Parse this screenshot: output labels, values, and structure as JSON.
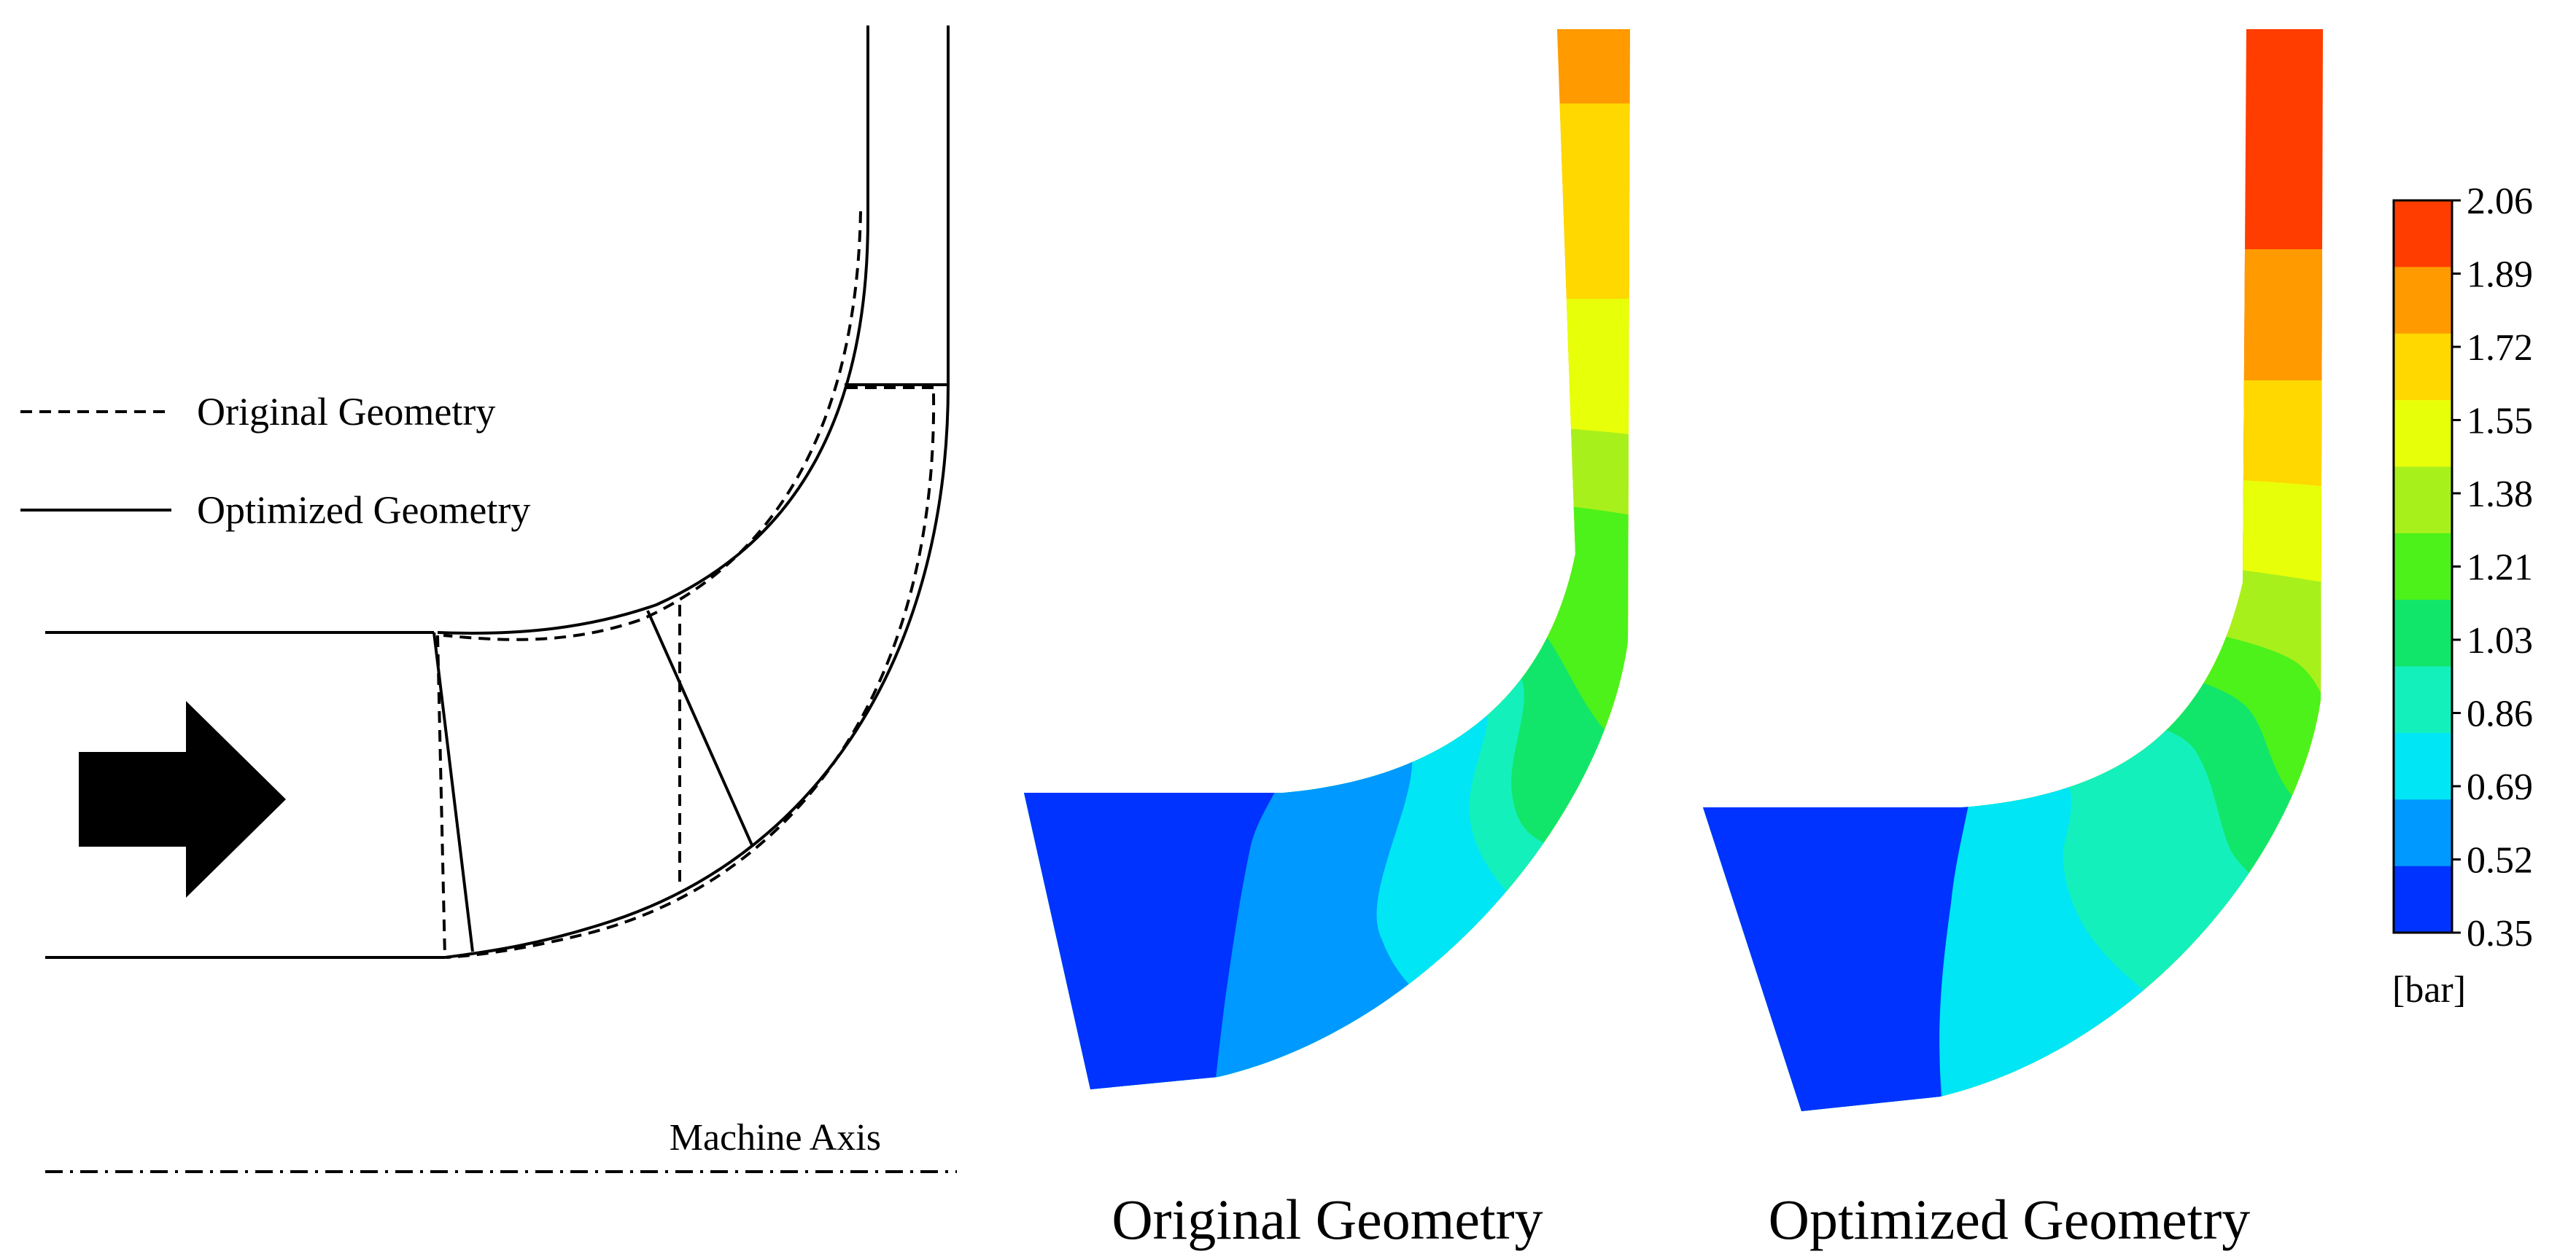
{
  "legend": {
    "original_label": "Original Geometry",
    "optimized_label": "Optimized Geometry"
  },
  "machine_axis_label": "Machine Axis",
  "captions": {
    "original": "Original Geometry",
    "optimized": "Optimized Geometry"
  },
  "colorbar": {
    "unit": "[bar]",
    "ticks": [
      "2.06",
      "1.89",
      "1.72",
      "1.55",
      "1.38",
      "1.21",
      "1.03",
      "0.86",
      "0.69",
      "0.52",
      "0.35"
    ],
    "colors": [
      "#ff3d00",
      "#ff9a00",
      "#ffd800",
      "#e8ff0a",
      "#a8f01c",
      "#4df21a",
      "#12e66a",
      "#14f0bc",
      "#00e6f5",
      "#0099ff",
      "#0033ff"
    ]
  },
  "contour_levels": {
    "original": {
      "inlet_low": "#0033ff",
      "band_2": "#0099ff",
      "band_3": "#00e6f5",
      "band_4": "#14f0bc",
      "band_5": "#12e66a",
      "band_6": "#4df21a",
      "band_7": "#a8f01c",
      "band_8": "#e8ff0a",
      "band_9": "#ffd800",
      "outlet_high": "#ff9a00"
    },
    "optimized": {
      "inlet_low": "#0033ff",
      "band_2": "#0099ff",
      "band_3": "#00e6f5",
      "band_4": "#14f0bc",
      "band_5": "#12e66a",
      "band_6": "#4df21a",
      "band_7": "#a8f01c",
      "band_8": "#e8ff0a",
      "band_9": "#ffd800",
      "band_10": "#ff9a00",
      "outlet_high": "#ff3d00"
    }
  }
}
